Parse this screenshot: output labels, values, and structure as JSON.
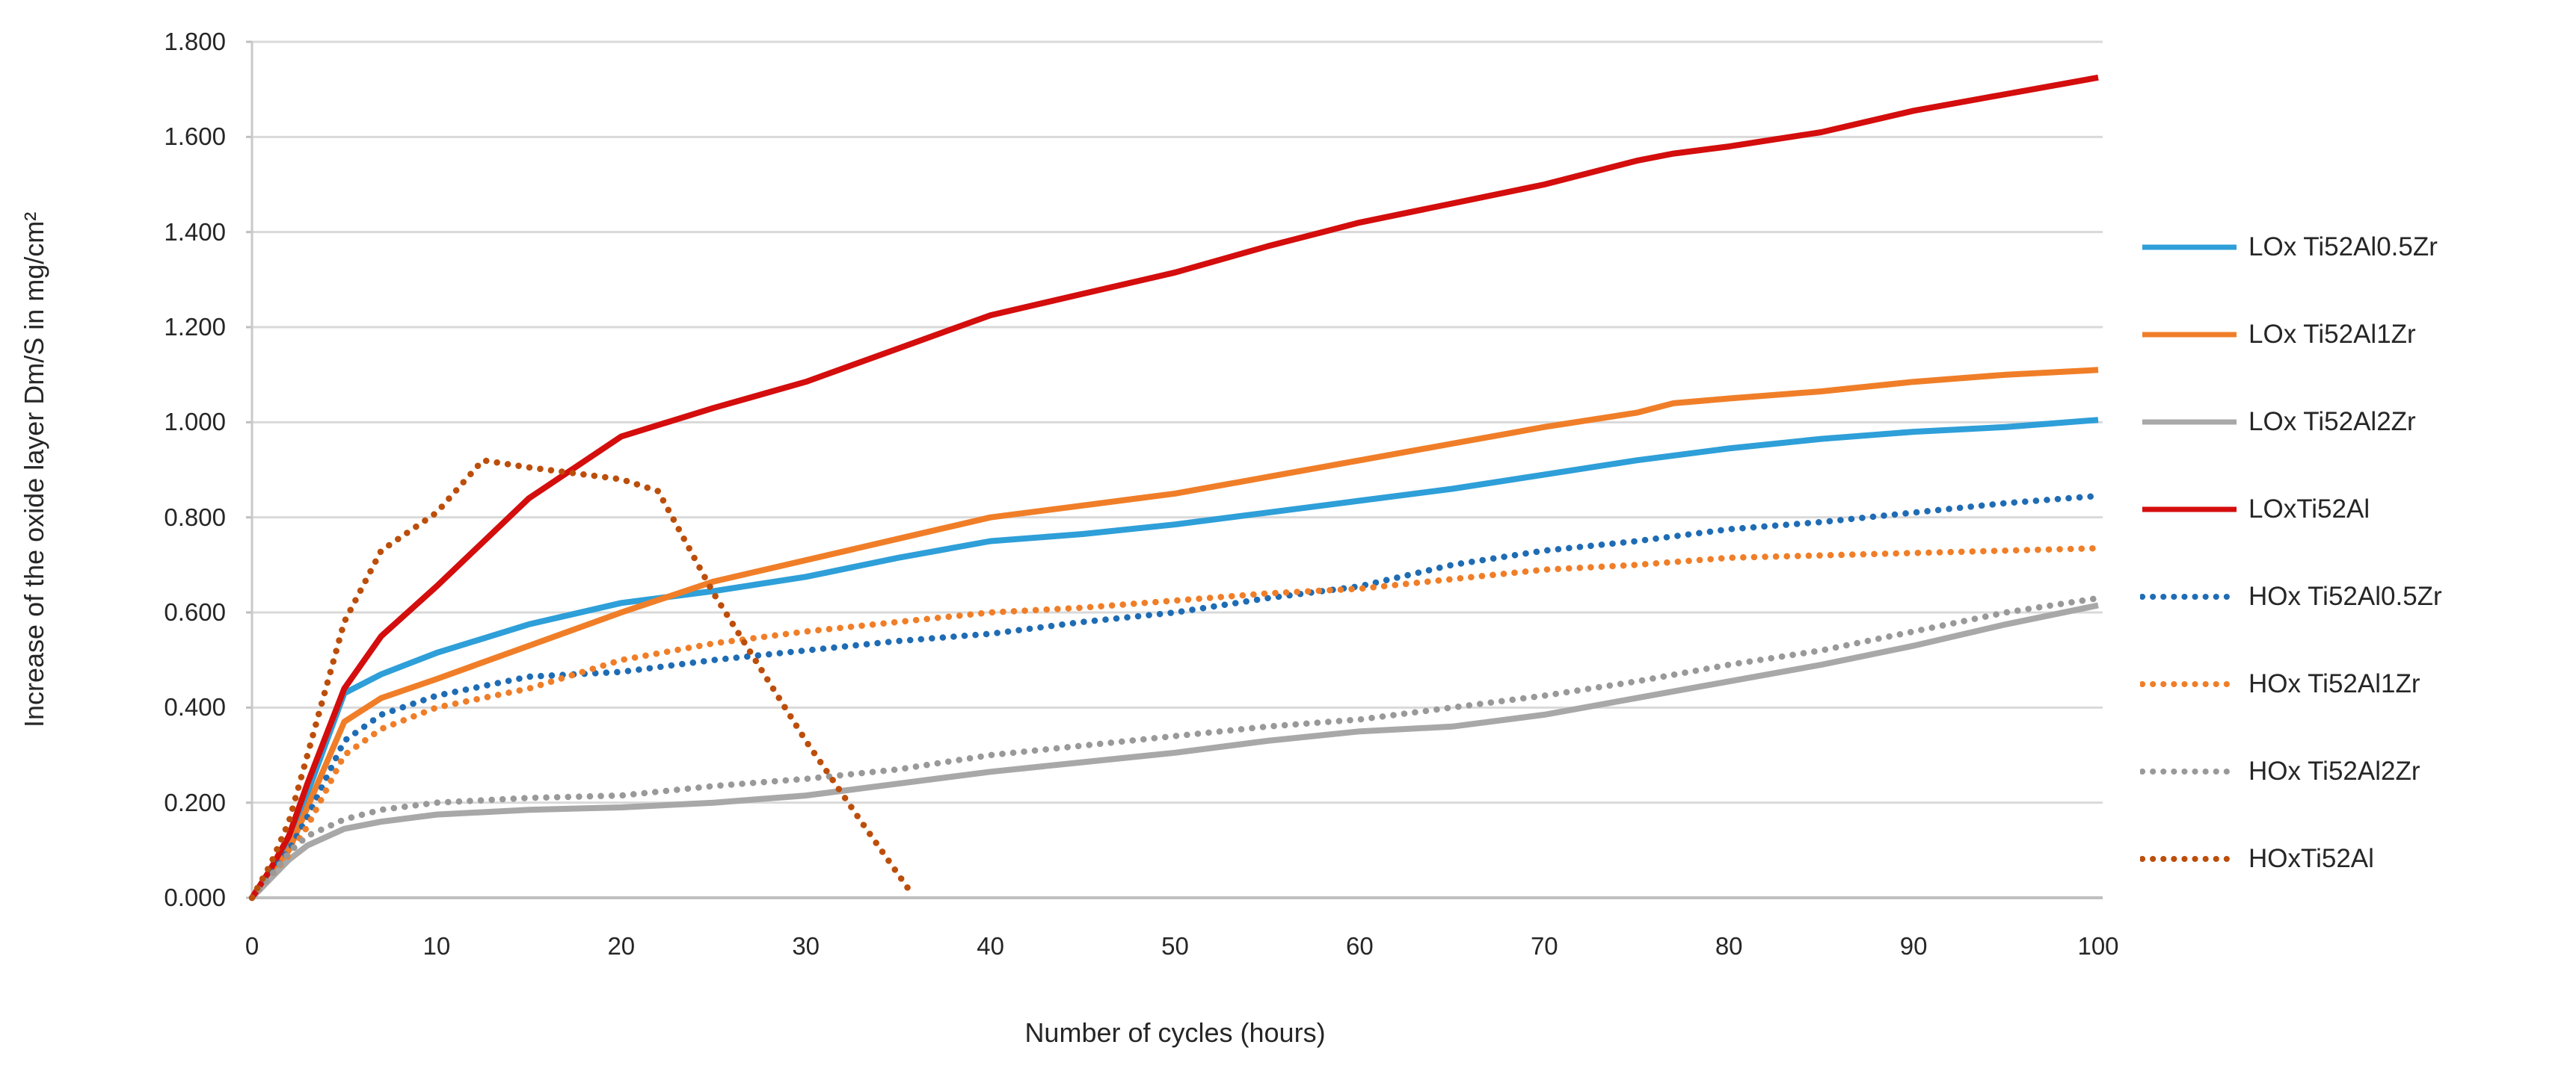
{
  "chart_data": {
    "type": "line",
    "title": "",
    "xlabel": "Number of cycles (hours)",
    "ylabel": "Increase of the oxide layer Dm/S in mg/cm²",
    "xlim": [
      0,
      100
    ],
    "ylim": [
      0,
      1.8
    ],
    "x_tick_step": 10,
    "y_tick_step": 0.2,
    "x_tick_labels": [
      "0",
      "10",
      "20",
      "30",
      "40",
      "50",
      "60",
      "70",
      "80",
      "90",
      "100"
    ],
    "y_tick_labels": [
      "0.000",
      "0.200",
      "0.400",
      "0.600",
      "0.800",
      "1.000",
      "1.200",
      "1.400",
      "1.600",
      "1.800"
    ],
    "grid": "horizontal",
    "legend_position": "right",
    "axis_colors": {
      "gridline": "#D9D9D9",
      "axis_line": "#BFBFBF",
      "tick_text": "#262626"
    },
    "series": [
      {
        "name": "LOx Ti52Al0.5Zr",
        "color": "#2E9FD8",
        "style": "solid",
        "points": [
          [
            0,
            0
          ],
          [
            1,
            0.05
          ],
          [
            2,
            0.11
          ],
          [
            3,
            0.22
          ],
          [
            5,
            0.43
          ],
          [
            7,
            0.47
          ],
          [
            10,
            0.515
          ],
          [
            15,
            0.575
          ],
          [
            20,
            0.62
          ],
          [
            25,
            0.645
          ],
          [
            30,
            0.675
          ],
          [
            35,
            0.715
          ],
          [
            40,
            0.75
          ],
          [
            45,
            0.765
          ],
          [
            50,
            0.785
          ],
          [
            55,
            0.81
          ],
          [
            60,
            0.835
          ],
          [
            65,
            0.86
          ],
          [
            70,
            0.89
          ],
          [
            75,
            0.92
          ],
          [
            80,
            0.945
          ],
          [
            85,
            0.965
          ],
          [
            90,
            0.98
          ],
          [
            95,
            0.99
          ],
          [
            100,
            1.005
          ]
        ]
      },
      {
        "name": "LOx Ti52Al1Zr",
        "color": "#F07E28",
        "style": "solid",
        "points": [
          [
            0,
            0
          ],
          [
            1,
            0.045
          ],
          [
            2,
            0.1
          ],
          [
            3,
            0.19
          ],
          [
            5,
            0.37
          ],
          [
            7,
            0.42
          ],
          [
            10,
            0.46
          ],
          [
            15,
            0.53
          ],
          [
            20,
            0.6
          ],
          [
            25,
            0.665
          ],
          [
            30,
            0.71
          ],
          [
            35,
            0.755
          ],
          [
            40,
            0.8
          ],
          [
            45,
            0.825
          ],
          [
            50,
            0.85
          ],
          [
            55,
            0.885
          ],
          [
            60,
            0.92
          ],
          [
            65,
            0.955
          ],
          [
            70,
            0.99
          ],
          [
            75,
            1.02
          ],
          [
            77,
            1.04
          ],
          [
            80,
            1.05
          ],
          [
            85,
            1.065
          ],
          [
            90,
            1.085
          ],
          [
            95,
            1.1
          ],
          [
            100,
            1.11
          ]
        ]
      },
      {
        "name": "LOx Ti52Al2Zr",
        "color": "#A8A8A8",
        "style": "solid",
        "points": [
          [
            0,
            0
          ],
          [
            1,
            0.04
          ],
          [
            2,
            0.08
          ],
          [
            3,
            0.11
          ],
          [
            5,
            0.145
          ],
          [
            7,
            0.16
          ],
          [
            10,
            0.175
          ],
          [
            15,
            0.185
          ],
          [
            20,
            0.19
          ],
          [
            25,
            0.2
          ],
          [
            30,
            0.215
          ],
          [
            35,
            0.24
          ],
          [
            40,
            0.265
          ],
          [
            45,
            0.285
          ],
          [
            50,
            0.305
          ],
          [
            55,
            0.33
          ],
          [
            60,
            0.35
          ],
          [
            65,
            0.36
          ],
          [
            70,
            0.385
          ],
          [
            75,
            0.42
          ],
          [
            80,
            0.455
          ],
          [
            85,
            0.49
          ],
          [
            90,
            0.53
          ],
          [
            95,
            0.575
          ],
          [
            100,
            0.615
          ]
        ]
      },
      {
        "name": "LOxTi52Al",
        "color": "#D40D0D",
        "style": "solid",
        "points": [
          [
            0,
            0
          ],
          [
            1,
            0.06
          ],
          [
            2,
            0.13
          ],
          [
            3,
            0.24
          ],
          [
            5,
            0.44
          ],
          [
            7,
            0.55
          ],
          [
            10,
            0.655
          ],
          [
            15,
            0.84
          ],
          [
            20,
            0.97
          ],
          [
            25,
            1.03
          ],
          [
            30,
            1.085
          ],
          [
            35,
            1.155
          ],
          [
            40,
            1.225
          ],
          [
            45,
            1.27
          ],
          [
            50,
            1.315
          ],
          [
            55,
            1.37
          ],
          [
            60,
            1.42
          ],
          [
            65,
            1.46
          ],
          [
            70,
            1.5
          ],
          [
            75,
            1.55
          ],
          [
            77,
            1.565
          ],
          [
            80,
            1.58
          ],
          [
            85,
            1.61
          ],
          [
            90,
            1.655
          ],
          [
            95,
            1.69
          ],
          [
            100,
            1.725
          ]
        ]
      },
      {
        "name": "HOx Ti52Al0.5Zr",
        "color": "#1F6CB4",
        "style": "dotted",
        "points": [
          [
            0,
            0
          ],
          [
            1,
            0.05
          ],
          [
            2,
            0.1
          ],
          [
            3,
            0.17
          ],
          [
            5,
            0.33
          ],
          [
            7,
            0.385
          ],
          [
            10,
            0.425
          ],
          [
            15,
            0.465
          ],
          [
            20,
            0.475
          ],
          [
            25,
            0.5
          ],
          [
            30,
            0.52
          ],
          [
            35,
            0.54
          ],
          [
            40,
            0.555
          ],
          [
            45,
            0.58
          ],
          [
            50,
            0.6
          ],
          [
            55,
            0.63
          ],
          [
            60,
            0.655
          ],
          [
            65,
            0.7
          ],
          [
            70,
            0.73
          ],
          [
            75,
            0.75
          ],
          [
            80,
            0.775
          ],
          [
            85,
            0.79
          ],
          [
            90,
            0.81
          ],
          [
            95,
            0.83
          ],
          [
            100,
            0.845
          ]
        ]
      },
      {
        "name": "HOx Ti52Al1Zr",
        "color": "#F07E28",
        "style": "dotted",
        "points": [
          [
            0,
            0
          ],
          [
            1,
            0.045
          ],
          [
            2,
            0.09
          ],
          [
            3,
            0.15
          ],
          [
            5,
            0.3
          ],
          [
            7,
            0.355
          ],
          [
            10,
            0.4
          ],
          [
            15,
            0.44
          ],
          [
            20,
            0.5
          ],
          [
            25,
            0.535
          ],
          [
            30,
            0.56
          ],
          [
            35,
            0.58
          ],
          [
            40,
            0.6
          ],
          [
            45,
            0.61
          ],
          [
            50,
            0.625
          ],
          [
            55,
            0.64
          ],
          [
            60,
            0.65
          ],
          [
            65,
            0.67
          ],
          [
            70,
            0.69
          ],
          [
            75,
            0.7
          ],
          [
            80,
            0.715
          ],
          [
            85,
            0.72
          ],
          [
            90,
            0.725
          ],
          [
            95,
            0.73
          ],
          [
            100,
            0.735
          ]
        ]
      },
      {
        "name": "HOx Ti52Al2Zr",
        "color": "#999999",
        "style": "dotted",
        "points": [
          [
            0,
            0
          ],
          [
            1,
            0.045
          ],
          [
            2,
            0.095
          ],
          [
            3,
            0.13
          ],
          [
            5,
            0.165
          ],
          [
            7,
            0.185
          ],
          [
            10,
            0.2
          ],
          [
            15,
            0.21
          ],
          [
            20,
            0.215
          ],
          [
            25,
            0.235
          ],
          [
            30,
            0.25
          ],
          [
            35,
            0.27
          ],
          [
            40,
            0.3
          ],
          [
            45,
            0.32
          ],
          [
            50,
            0.34
          ],
          [
            55,
            0.36
          ],
          [
            60,
            0.375
          ],
          [
            65,
            0.4
          ],
          [
            70,
            0.425
          ],
          [
            75,
            0.455
          ],
          [
            80,
            0.49
          ],
          [
            85,
            0.52
          ],
          [
            90,
            0.56
          ],
          [
            95,
            0.6
          ],
          [
            100,
            0.63
          ]
        ]
      },
      {
        "name": "HOxTi52Al",
        "color": "#BC4E0B",
        "style": "dotted",
        "points": [
          [
            0,
            0
          ],
          [
            1,
            0.07
          ],
          [
            2,
            0.16
          ],
          [
            3,
            0.3
          ],
          [
            5,
            0.58
          ],
          [
            7,
            0.73
          ],
          [
            10,
            0.81
          ],
          [
            12.5,
            0.92
          ],
          [
            15,
            0.905
          ],
          [
            20,
            0.88
          ],
          [
            22,
            0.855
          ],
          [
            25,
            0.64
          ],
          [
            30,
            0.33
          ],
          [
            33,
            0.16
          ],
          [
            35.8,
            0.005
          ]
        ]
      }
    ]
  }
}
